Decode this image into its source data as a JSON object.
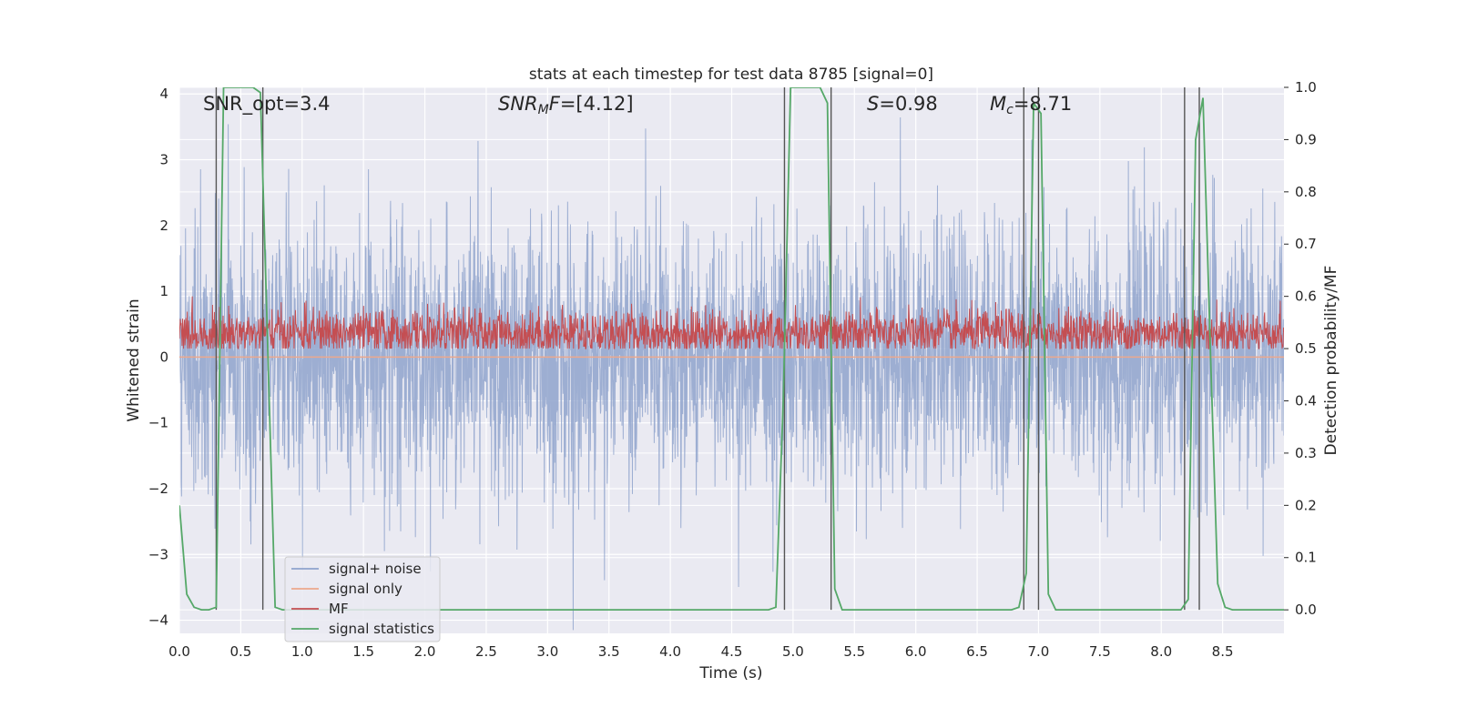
{
  "chart_data": {
    "type": "line",
    "title": "stats at each timestep for test data 8785 [signal=0]",
    "xlabel": "Time (s)",
    "ylabel": "Whitened strain",
    "y2label": "Detection probability/MF",
    "xlim": [
      0.0,
      9.0
    ],
    "ylim": [
      -4.2,
      4.1
    ],
    "y2lim": [
      -0.045,
      1.0
    ],
    "xticks": [
      0.0,
      0.5,
      1.0,
      1.5,
      2.0,
      2.5,
      3.0,
      3.5,
      4.0,
      4.5,
      5.0,
      5.5,
      6.0,
      6.5,
      7.0,
      7.5,
      8.0,
      8.5
    ],
    "yticks": [
      -4,
      -3,
      -2,
      -1,
      0,
      1,
      2,
      3,
      4
    ],
    "y2ticks": [
      0.0,
      0.1,
      0.2,
      0.3,
      0.4,
      0.5,
      0.6,
      0.7,
      0.8,
      0.9,
      1.0
    ],
    "grid": true,
    "annotations": {
      "snr_opt": "SNR_opt=3.4",
      "snr_mf_sym": "SNR",
      "snr_mf_sub": "M",
      "snr_mf_f": "F",
      "snr_mf_val": "=[4.12]",
      "s_sym": "S",
      "s_val": "=0.98",
      "mc_sym": "M",
      "mc_sub": "c",
      "mc_val": "=8.71"
    },
    "legend": {
      "placement": "lower-left",
      "entries": [
        {
          "label": "signal+ noise",
          "color": "#8fa3cd"
        },
        {
          "label": "signal only",
          "color": "#eda88c"
        },
        {
          "label": "MF",
          "color": "#c44e52"
        },
        {
          "label": "signal statistics",
          "color": "#55a868"
        }
      ]
    },
    "series": [
      {
        "name": "signal+ noise",
        "axis": "left",
        "color": "#8fa3cd",
        "kind": "noise",
        "duration_s": 9.0,
        "sigma": 1.0
      },
      {
        "name": "signal only",
        "axis": "left",
        "color": "#eda88c",
        "kind": "flat",
        "value": 0
      },
      {
        "name": "MF",
        "axis": "right",
        "color": "#c44e52",
        "kind": "noise",
        "duration_s": 9.0,
        "mean": 0.53,
        "range": [
          0.5,
          0.6
        ]
      },
      {
        "name": "signal statistics",
        "axis": "right",
        "color": "#55a868",
        "x": [
          0.0,
          0.06,
          0.12,
          0.18,
          0.24,
          0.3,
          0.36,
          0.42,
          0.48,
          0.54,
          0.6,
          0.66,
          0.72,
          0.78,
          0.84,
          0.9,
          4.8,
          4.86,
          4.92,
          4.98,
          5.04,
          5.1,
          5.16,
          5.22,
          5.28,
          5.34,
          5.4,
          5.46,
          6.78,
          6.84,
          6.9,
          6.96,
          7.02,
          7.08,
          7.14,
          8.1,
          8.16,
          8.22,
          8.28,
          8.34,
          8.4,
          8.46,
          8.52,
          8.58,
          8.64,
          8.7,
          8.76,
          8.82,
          8.88,
          8.94,
          9.0
        ],
        "y": [
          0.2,
          0.03,
          0.005,
          0.0,
          0.0,
          0.005,
          1.0,
          1.0,
          1.0,
          1.0,
          1.0,
          0.99,
          0.5,
          0.005,
          0.0,
          0.0,
          0.0,
          0.005,
          0.4,
          1.0,
          1.0,
          1.0,
          1.0,
          1.0,
          0.97,
          0.04,
          0.0,
          0.0,
          0.0,
          0.005,
          0.07,
          0.97,
          0.95,
          0.03,
          0.0,
          0.0,
          0.0,
          0.02,
          0.9,
          0.98,
          0.5,
          0.05,
          0.005,
          0.0,
          0.0,
          0.0,
          0.0,
          0.0,
          0.0,
          0.0,
          0.0
        ]
      }
    ],
    "vlines_s": [
      0.3,
      0.68,
      4.93,
      5.31,
      6.88,
      7.0,
      8.19,
      8.31
    ]
  }
}
